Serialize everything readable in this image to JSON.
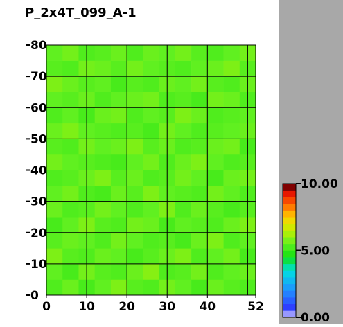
{
  "chart_data": {
    "type": "heatmap",
    "title": "P_2x4T_099_A-1",
    "x": [
      2,
      6,
      10,
      14,
      18,
      22,
      26,
      30,
      34,
      38,
      42,
      46,
      50
    ],
    "y": [
      2.5,
      7.5,
      12.5,
      17.5,
      22.5,
      27.5,
      32.5,
      37.5,
      42.5,
      47.5,
      52.5,
      57.5,
      62.5,
      67.5,
      72.5,
      77.5
    ],
    "cell_width": 4,
    "cell_height": 5,
    "z": [
      [
        5.3,
        5.6,
        5.2,
        5.5,
        5.8,
        5.4,
        5.3,
        5.7,
        5.5,
        5.2,
        5.6,
        5.4,
        5.3
      ],
      [
        5.5,
        5.2,
        5.7,
        5.4,
        5.3,
        5.6,
        5.9,
        5.3,
        5.4,
        5.7,
        5.3,
        5.5,
        5.6
      ],
      [
        5.8,
        5.4,
        5.3,
        5.6,
        5.5,
        5.2,
        5.4,
        5.6,
        5.8,
        5.3,
        5.5,
        5.7,
        5.2
      ],
      [
        5.4,
        5.6,
        5.5,
        5.3,
        5.7,
        5.5,
        5.3,
        5.4,
        5.2,
        5.6,
        5.8,
        5.3,
        5.5
      ],
      [
        5.2,
        5.5,
        5.8,
        5.4,
        5.3,
        5.7,
        5.6,
        5.2,
        5.5,
        5.4,
        5.3,
        5.6,
        5.8
      ],
      [
        5.6,
        5.3,
        5.4,
        5.7,
        5.5,
        5.3,
        5.5,
        5.8,
        5.3,
        5.6,
        5.4,
        5.2,
        5.4
      ],
      [
        5.5,
        5.7,
        5.3,
        5.2,
        5.6,
        5.4,
        5.8,
        5.5,
        5.4,
        5.3,
        5.7,
        5.5,
        5.3
      ],
      [
        5.3,
        5.4,
        5.6,
        5.8,
        5.4,
        5.6,
        5.3,
        5.4,
        5.7,
        5.5,
        5.2,
        5.6,
        5.7
      ],
      [
        5.7,
        5.5,
        5.4,
        5.3,
        5.2,
        5.5,
        5.7,
        5.3,
        5.6,
        5.8,
        5.5,
        5.3,
        5.4
      ],
      [
        5.4,
        5.3,
        5.7,
        5.5,
        5.6,
        5.8,
        5.4,
        5.6,
        5.3,
        5.4,
        5.6,
        5.7,
        5.2
      ],
      [
        5.6,
        5.8,
        5.5,
        5.4,
        5.3,
        5.4,
        5.2,
        5.7,
        5.5,
        5.3,
        5.4,
        5.5,
        5.6
      ],
      [
        5.3,
        5.5,
        5.2,
        5.6,
        5.7,
        5.3,
        5.5,
        5.4,
        5.8,
        5.6,
        5.3,
        5.4,
        5.5
      ],
      [
        5.5,
        5.4,
        5.6,
        5.3,
        5.5,
        5.6,
        5.7,
        5.3,
        5.4,
        5.2,
        5.7,
        5.6,
        5.3
      ],
      [
        5.8,
        5.6,
        5.4,
        5.5,
        5.2,
        5.4,
        5.3,
        5.6,
        5.5,
        5.7,
        5.4,
        5.3,
        5.6
      ],
      [
        5.4,
        5.3,
        5.7,
        5.6,
        5.4,
        5.7,
        5.5,
        5.4,
        5.3,
        5.5,
        5.6,
        5.8,
        5.4
      ],
      [
        5.5,
        5.7,
        5.3,
        5.4,
        5.6,
        5.3,
        5.6,
        5.5,
        5.7,
        5.4,
        5.3,
        5.5,
        5.7
      ]
    ],
    "xlim": [
      0,
      52
    ],
    "xticks": [
      0,
      10,
      20,
      30,
      40,
      52
    ],
    "xgrid": [
      10,
      20,
      30,
      40,
      50
    ],
    "ylim": [
      0,
      80
    ],
    "yticks": [
      0,
      10,
      20,
      30,
      40,
      50,
      60,
      70,
      80
    ],
    "grid": true,
    "colorbar": {
      "lim": [
        0,
        10
      ],
      "ticks": [
        {
          "value": 0,
          "label": "0.00"
        },
        {
          "value": 5,
          "label": "5.00"
        },
        {
          "value": 10,
          "label": "10.00"
        }
      ]
    },
    "colorscale": [
      [
        0,
        "#ffffff"
      ],
      [
        0.5,
        "#3030ff"
      ],
      [
        2,
        "#2090ff"
      ],
      [
        3.5,
        "#00e0e0"
      ],
      [
        4.5,
        "#10e010"
      ],
      [
        5.5,
        "#60f020"
      ],
      [
        6.5,
        "#c0f000"
      ],
      [
        7.5,
        "#ffd000"
      ],
      [
        8.5,
        "#ff6000"
      ],
      [
        9.5,
        "#e00000"
      ],
      [
        10,
        "#200000"
      ]
    ]
  }
}
